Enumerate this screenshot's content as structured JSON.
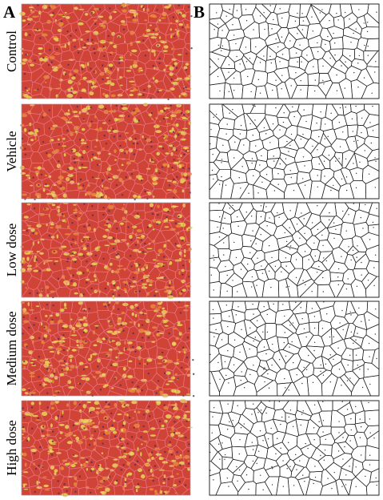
{
  "panel_labels": [
    "A",
    "B"
  ],
  "rows": [
    "Control",
    "Vehicle",
    "Low dose",
    "Medium dose",
    "High dose"
  ]
}
